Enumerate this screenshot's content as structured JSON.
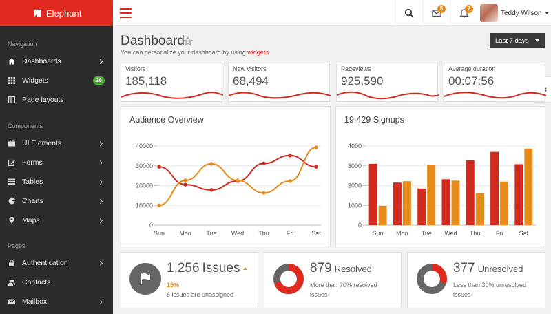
{
  "brand": {
    "name": "Elephant",
    "color": "#e0291f"
  },
  "topbar": {
    "mail_count": "8",
    "notification_count": "7",
    "user_name": "Teddy Wilson"
  },
  "sidebar": {
    "sections": [
      {
        "label": "Navigation"
      },
      {
        "label": "Components"
      },
      {
        "label": "Pages"
      }
    ],
    "items": [
      {
        "label": "Dashboards",
        "icon": "home-icon"
      },
      {
        "label": "Widgets",
        "icon": "grid-icon",
        "badge": "26"
      },
      {
        "label": "Page layouts",
        "icon": "layout-icon"
      },
      {
        "label": "UI Elements",
        "icon": "briefcase-icon"
      },
      {
        "label": "Forms",
        "icon": "edit-icon"
      },
      {
        "label": "Tables",
        "icon": "table-icon"
      },
      {
        "label": "Charts",
        "icon": "pie-chart-icon"
      },
      {
        "label": "Maps",
        "icon": "map-marker-icon"
      },
      {
        "label": "Authentication",
        "icon": "lock-icon"
      },
      {
        "label": "Contacts",
        "icon": "users-icon"
      },
      {
        "label": "Mailbox",
        "icon": "mail-icon"
      }
    ]
  },
  "header": {
    "title": "Dashboard",
    "subtitle_prefix": "You can personalize your dashboard by using ",
    "subtitle_link": "widgets",
    "subtitle_suffix": ".",
    "range_label": "Last 7 days"
  },
  "stats": [
    {
      "label": "Visitors",
      "value": "185,118"
    },
    {
      "label": "New visitors",
      "value": "68,494"
    },
    {
      "label": "Pageviews",
      "value": "925,590"
    },
    {
      "label": "Average duration",
      "value": "00:07:56"
    }
  ],
  "audience_title": "Audience Overview",
  "signups_title": "19,429 Signups",
  "chart_data": [
    {
      "type": "line",
      "title": "Audience Overview",
      "categories": [
        "Sun",
        "Mon",
        "Tue",
        "Wed",
        "Thu",
        "Fri",
        "Sat"
      ],
      "ylim": [
        0,
        40000
      ],
      "yticks": [
        0,
        10000,
        20000,
        30000,
        40000
      ],
      "grid": true,
      "series": [
        {
          "color": "#d32a1e",
          "values": [
            29500,
            20500,
            17800,
            22300,
            31200,
            35200,
            29500
          ]
        },
        {
          "color": "#e48b1b",
          "values": [
            10000,
            22600,
            31000,
            22600,
            16300,
            22300,
            39300
          ]
        }
      ]
    },
    {
      "type": "bar",
      "title": "19,429 Signups",
      "categories": [
        "Sun",
        "Mon",
        "Tue",
        "Wed",
        "Thu",
        "Fri",
        "Sat"
      ],
      "ylim": [
        0,
        4000
      ],
      "yticks": [
        0,
        1000,
        2000,
        3000,
        4000
      ],
      "grid": true,
      "series": [
        {
          "color": "#d32a1e",
          "values": [
            3100,
            2150,
            1850,
            2320,
            3280,
            3700,
            3080
          ]
        },
        {
          "color": "#e48b1b",
          "values": [
            980,
            2220,
            3060,
            2250,
            1620,
            2200,
            3870
          ]
        }
      ]
    }
  ],
  "bottom": {
    "issues": {
      "number": "1,256",
      "word": "Issues",
      "percent": "15%",
      "note": "6 issues are unassigned"
    },
    "resolved": {
      "number": "879",
      "word": "Resolved",
      "note": "More than 70% resolved issues",
      "fraction": 0.7
    },
    "unresolved": {
      "number": "377",
      "word": "Unresolved",
      "note": "Less than 30% unresolved issues",
      "fraction": 0.3
    }
  },
  "colors": {
    "accent": "#e0291f",
    "orange": "#e48b1b",
    "sidebar": "#2b2b2b",
    "dark_button": "#3a3a3a",
    "success": "#4caf2f"
  }
}
